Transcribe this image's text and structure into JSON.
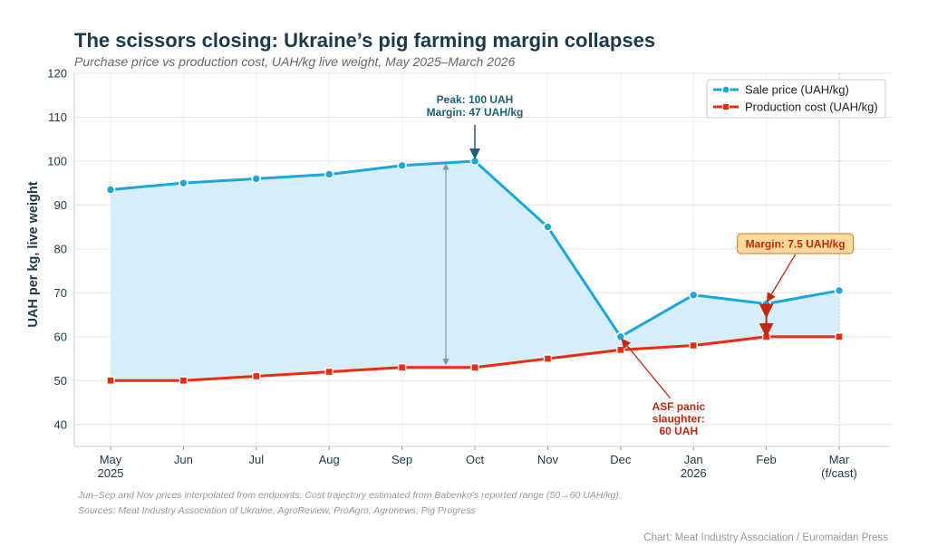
{
  "header": {
    "title": "The scissors closing: Ukraine’s pig farming margin collapses",
    "subtitle": "Purchase price vs production cost, UAH/kg live weight, May 2025–March 2026"
  },
  "footer": {
    "note": "Jun–Sep and Nov prices interpolated from endpoints. Cost trajectory estimated from Babenko’s reported range (50→60 UAH/kg).",
    "sources": "Sources: Meat Industry Association of Ukraine, AgroReview, ProAgro, Agronews, Pig Progress",
    "credit": "Chart: Meat Industry Association / Euromaidan Press"
  },
  "chart_data": {
    "type": "line",
    "categories": [
      "May\n2025",
      "Jun",
      "Jul",
      "Aug",
      "Sep",
      "Oct",
      "Nov",
      "Dec",
      "Jan\n2026",
      "Feb",
      "Mar\n(f/cast)"
    ],
    "series": [
      {
        "name": "Sale price (UAH/kg)",
        "color": "#1aa7de",
        "values": [
          93.5,
          95,
          96,
          97,
          99,
          100,
          85,
          60,
          69.5,
          67.5,
          70.5
        ]
      },
      {
        "name": "Production cost (UAH/kg)",
        "color": "#ee2a0b",
        "values": [
          50,
          50,
          51,
          52,
          53,
          53,
          55,
          57,
          58,
          60,
          60
        ]
      }
    ],
    "ylabel": "UAH per kg, live weight",
    "ylim": [
      35,
      120
    ],
    "yticks": [
      40,
      50,
      60,
      70,
      80,
      90,
      100,
      110,
      120
    ],
    "grid": true,
    "legend": "top-right",
    "annotations": {
      "peak": {
        "lines": [
          "Peak: 100 UAH",
          "Margin: 47 UAH/kg"
        ],
        "index": 5,
        "color": "#1a5f7a"
      },
      "asf": {
        "lines": [
          "ASF panic",
          "slaughter:",
          "60 UAH"
        ],
        "index": 7,
        "color": "#c0280f"
      },
      "margin": {
        "text": "Margin: 7.5 UAH/kg",
        "index": 9,
        "color": "#c0280f",
        "fill": "#fdd99a"
      }
    }
  }
}
